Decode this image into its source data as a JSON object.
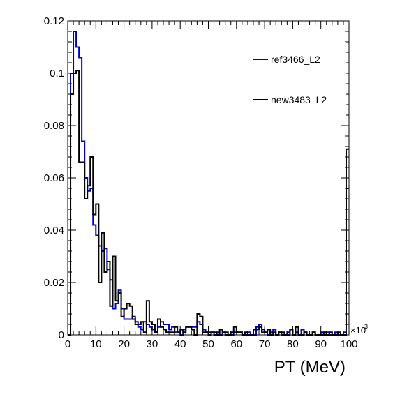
{
  "chart_data": {
    "type": "line",
    "subtype": "step-histogram",
    "xlabel": "PT (MeV)",
    "x_multiplier": "×10",
    "x_multiplier_exponent": "3",
    "xlim": [
      0,
      100
    ],
    "ylim": [
      0,
      0.12
    ],
    "x_ticks": [
      0,
      10,
      20,
      30,
      40,
      50,
      60,
      70,
      80,
      90,
      100
    ],
    "x_tick_labels": [
      "0",
      "10",
      "20",
      "30",
      "40",
      "50",
      "60",
      "70",
      "80",
      "90",
      "100"
    ],
    "y_ticks": [
      0,
      0.02,
      0.04,
      0.06,
      0.08,
      0.1,
      0.12
    ],
    "y_tick_labels": [
      "0",
      "0.02",
      "0.04",
      "0.06",
      "0.08",
      "0.1",
      "0.12"
    ],
    "bin_width": 1,
    "legend_position": "top-right",
    "series": [
      {
        "name": "ref3466_L2",
        "color": "#0000cc",
        "values": [
          0.0,
          0.1,
          0.116,
          0.11,
          0.106,
          0.074,
          0.06,
          0.055,
          0.056,
          0.042,
          0.038,
          0.034,
          0.032,
          0.033,
          0.025,
          0.021,
          0.01,
          0.012,
          0.017,
          0.01,
          0.006,
          0.006,
          0.006,
          0.007,
          0.005,
          0.003,
          0.002,
          0.005,
          0.004,
          0.003,
          0.002,
          0.001,
          0.003,
          0.005,
          0.004,
          0.004,
          0.002,
          0.003,
          0.001,
          0.001,
          0.0,
          0.002,
          0.003,
          0.003,
          0.003,
          0.003,
          0.005,
          0.004,
          0.002,
          0.001,
          0.0,
          0.001,
          0.0,
          0.001,
          0.0,
          0.001,
          0.0,
          0.0,
          0.0,
          0.001,
          0.001,
          0.001,
          0.0,
          0.0,
          0.001,
          0.0,
          0.0,
          0.003,
          0.004,
          0.002,
          0.001,
          0.0,
          0.001,
          0.002,
          0.0,
          0.001,
          0.0,
          0.0,
          0.001,
          0.002,
          0.0,
          0.001,
          0.0,
          0.002,
          0.001,
          0.0,
          0.0,
          0.001,
          0.0,
          0.0,
          0.001,
          0.0,
          0.001,
          0.0,
          0.0,
          0.001,
          0.0,
          0.0,
          0.001,
          0.056
        ]
      },
      {
        "name": "new3483_L2",
        "color": "#000000",
        "values": [
          0.0,
          0.092,
          0.1,
          0.101,
          0.066,
          0.066,
          0.052,
          0.057,
          0.068,
          0.046,
          0.05,
          0.02,
          0.039,
          0.024,
          0.028,
          0.011,
          0.03,
          0.013,
          0.016,
          0.007,
          0.01,
          0.012,
          0.011,
          0.006,
          0.004,
          0.004,
          0.005,
          0.001,
          0.013,
          0.005,
          0.004,
          0.001,
          0.006,
          0.003,
          0.002,
          0.001,
          0.001,
          0.001,
          0.003,
          0.001,
          0.002,
          0.001,
          0.003,
          0.003,
          0.002,
          0.0,
          0.008,
          0.007,
          0.001,
          0.001,
          0.001,
          0.001,
          0.001,
          0.0,
          0.002,
          0.001,
          0.001,
          0.0,
          0.001,
          0.003,
          0.001,
          0.001,
          0.0,
          0.001,
          0.0,
          0.0,
          0.002,
          0.002,
          0.003,
          0.001,
          0.001,
          0.002,
          0.0,
          0.001,
          0.0,
          0.001,
          0.001,
          0.0,
          0.0,
          0.002,
          0.0,
          0.003,
          0.0,
          0.0,
          0.001,
          0.0,
          0.0,
          0.001,
          0.0,
          0.0,
          0.0,
          0.001,
          0.0,
          0.001,
          0.0,
          0.0,
          0.001,
          0.0,
          0.0,
          0.071
        ]
      }
    ]
  }
}
